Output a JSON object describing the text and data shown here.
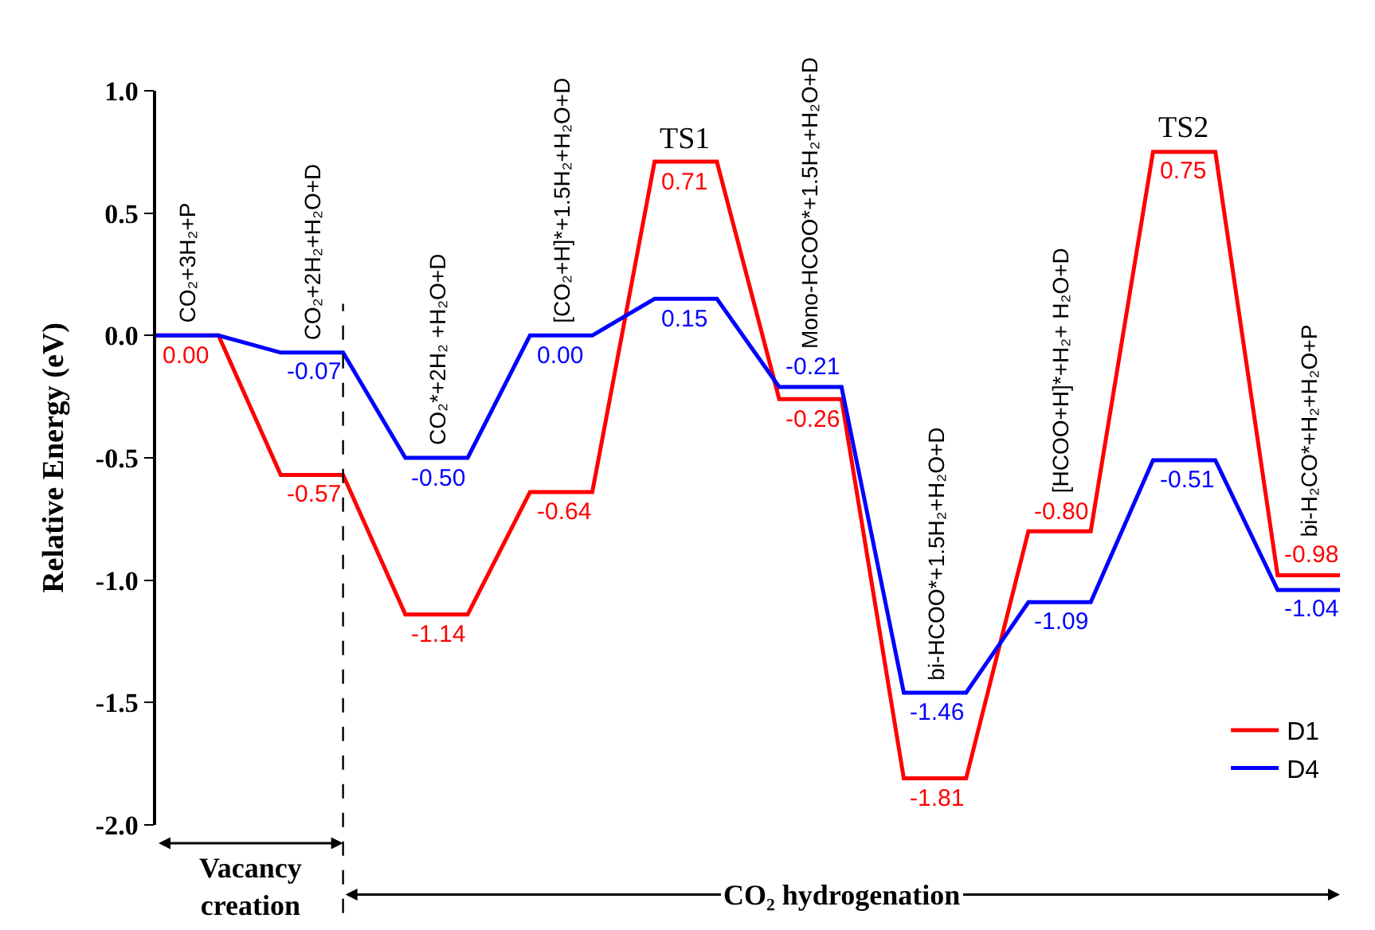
{
  "chart_data": {
    "type": "line",
    "ylabel": "Relative Energy (eV)",
    "categories": [
      null,
      null,
      null,
      null,
      null,
      null,
      null,
      null,
      null,
      null,
      null,
      null,
      null,
      null,
      null,
      null,
      null,
      null,
      null,
      null
    ],
    "series": [
      {
        "name": "D1",
        "color": "#ff0000",
        "values": [
          0.0,
          0.0,
          -0.57,
          -0.57,
          -1.14,
          -1.14,
          -0.64,
          -0.64,
          0.71,
          0.71,
          -0.26,
          -0.26,
          -1.81,
          -1.81,
          -0.8,
          -0.8,
          0.75,
          0.75,
          -0.98,
          -0.98
        ],
        "value_labels": [
          "0.00",
          null,
          "-0.57",
          null,
          "-1.14",
          null,
          "-0.64",
          null,
          "0.71",
          null,
          "-0.26",
          null,
          "-1.81",
          null,
          "-0.80",
          null,
          "0.75",
          null,
          "-0.98",
          null
        ]
      },
      {
        "name": "D4",
        "color": "#0000ff",
        "values": [
          0.0,
          0.0,
          -0.07,
          -0.07,
          -0.5,
          -0.5,
          0.0,
          0.0,
          0.15,
          0.15,
          -0.21,
          -0.21,
          -1.46,
          -1.46,
          -1.09,
          -1.09,
          -0.51,
          -0.51,
          -1.04,
          -1.04
        ],
        "value_labels": [
          null,
          null,
          "-0.07",
          null,
          "-0.50",
          null,
          "0.00",
          null,
          "0.15",
          null,
          "-0.21",
          null,
          "-1.46",
          null,
          "-1.09",
          null,
          "-0.51",
          null,
          "-1.04",
          null
        ]
      }
    ],
    "ylim": [
      -2.0,
      1.0
    ],
    "yticks": [
      {
        "value": 1.0,
        "label": "1.0"
      },
      {
        "value": 0.5,
        "label": "0.5"
      },
      {
        "value": 0,
        "label": "0.0"
      },
      {
        "value": -0.5,
        "label": "-0.5"
      },
      {
        "value": -1.0,
        "label": "-1.0"
      },
      {
        "value": -1.5,
        "label": "-1.5"
      },
      {
        "value": -2.0,
        "label": "-2.0"
      }
    ],
    "tick_labels": "y",
    "grid": false,
    "legend": "bottom right",
    "marker": "none",
    "line_style": "solid",
    "annotations": [
      "CO₂+3H₂+P",
      "CO₂+2H₂+H₂O+D",
      "CO₂*+2H₂ +H₂O+D",
      "[CO₂+H]*+1.5H₂+H₂O+D",
      "TS1",
      "Mono-HCOO*+1.5H₂+H₂O+D",
      "bi-HCOO*+1.5H₂+H₂O+D",
      "[HCOO+H]*+H₂+ H₂O+D",
      "TS2",
      "bi-H₂CO*+H₂+H₂O+P",
      "Vacancy creation",
      "CO₂ hydrogenation"
    ]
  }
}
